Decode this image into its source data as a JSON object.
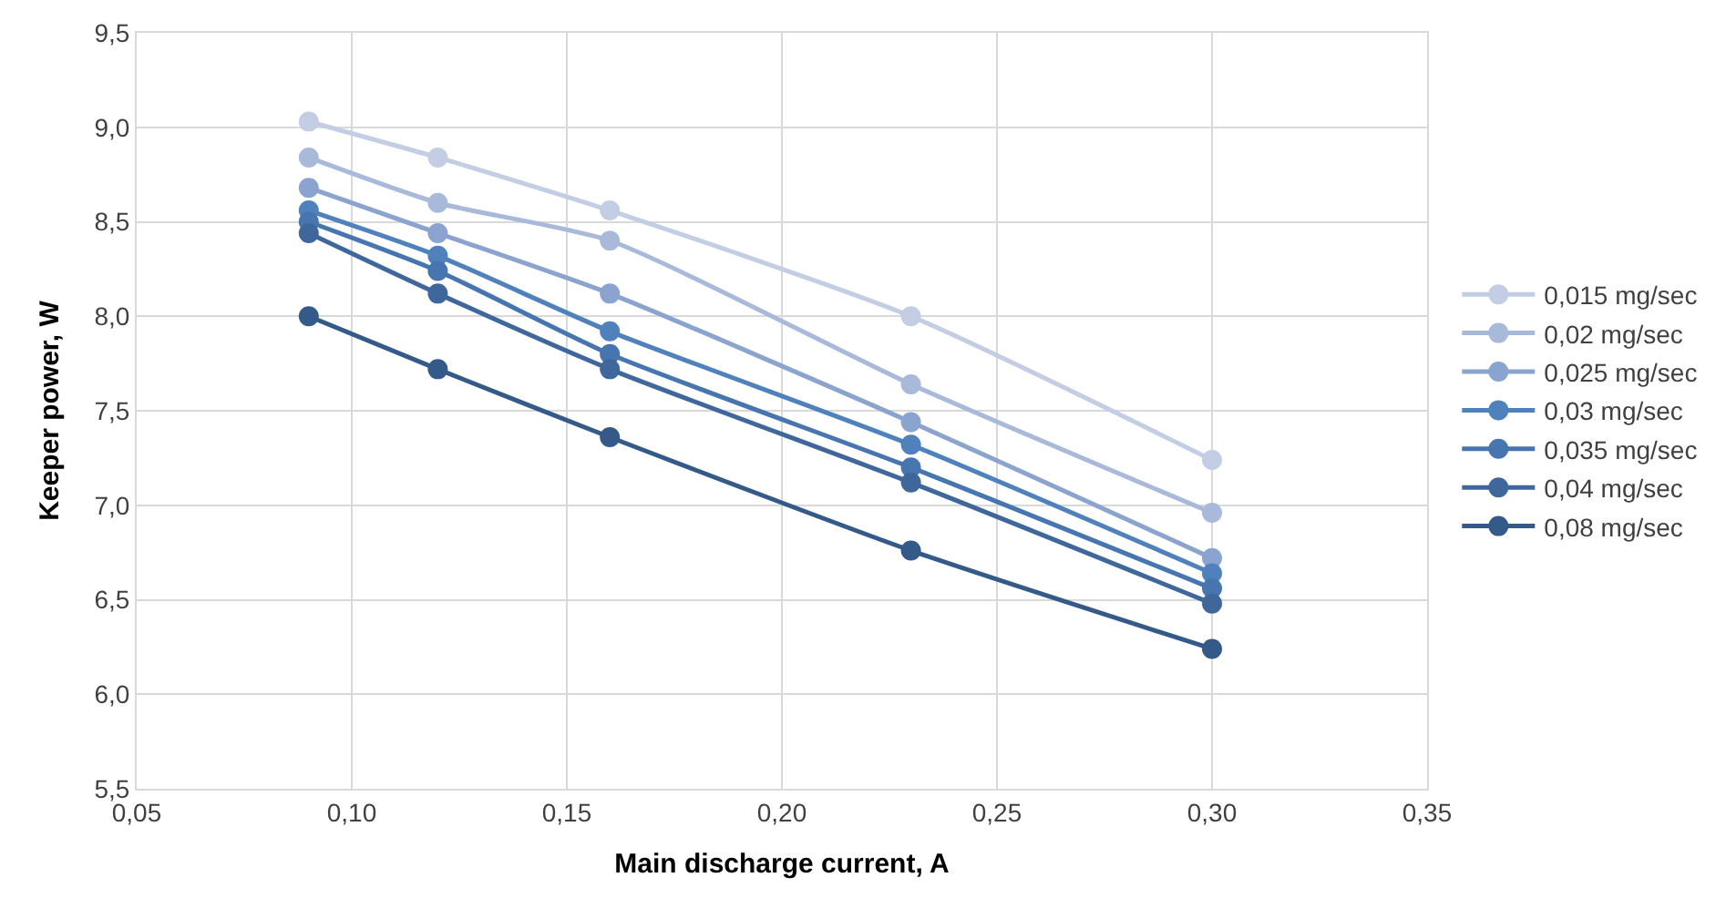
{
  "chart_data": {
    "type": "line",
    "xlabel": "Main discharge current, A",
    "ylabel": "Keeper power, W",
    "x": [
      0.09,
      0.12,
      0.16,
      0.23,
      0.3
    ],
    "series": [
      {
        "name": "0,015 mg/sec",
        "color": "#c3cde3",
        "values": [
          9.03,
          8.84,
          8.56,
          8.0,
          7.24
        ]
      },
      {
        "name": "0,02 mg/sec",
        "color": "#a9b9da",
        "values": [
          8.84,
          8.6,
          8.4,
          7.64,
          6.96
        ]
      },
      {
        "name": "0,025 mg/sec",
        "color": "#8aa3cf",
        "values": [
          8.68,
          8.44,
          8.12,
          7.44,
          6.72
        ]
      },
      {
        "name": "0,03 mg/sec",
        "color": "#4f81bd",
        "values": [
          8.56,
          8.32,
          7.92,
          7.32,
          6.64
        ]
      },
      {
        "name": "0,035 mg/sec",
        "color": "#4675b0",
        "values": [
          8.5,
          8.24,
          7.8,
          7.2,
          6.56
        ]
      },
      {
        "name": "0,04 mg/sec",
        "color": "#3f679c",
        "values": [
          8.44,
          8.12,
          7.72,
          7.12,
          6.48
        ]
      },
      {
        "name": "0,08 mg/sec",
        "color": "#345a89",
        "values": [
          8.0,
          7.72,
          7.36,
          6.76,
          6.24
        ]
      }
    ],
    "xlim": [
      0.05,
      0.35
    ],
    "xticks": [
      {
        "value": 0.05,
        "label": "0,05"
      },
      {
        "value": 0.1,
        "label": "0,10"
      },
      {
        "value": 0.15,
        "label": "0,15"
      },
      {
        "value": 0.2,
        "label": "0,20"
      },
      {
        "value": 0.25,
        "label": "0,25"
      },
      {
        "value": 0.3,
        "label": "0,30"
      },
      {
        "value": 0.35,
        "label": "0,35"
      }
    ],
    "ylim": [
      5.5,
      9.5
    ],
    "yticks": [
      {
        "value": 5.5,
        "label": "5,5"
      },
      {
        "value": 6.0,
        "label": "6,0"
      },
      {
        "value": 6.5,
        "label": "6,5"
      },
      {
        "value": 7.0,
        "label": "7,0"
      },
      {
        "value": 7.5,
        "label": "7,5"
      },
      {
        "value": 8.0,
        "label": "8,0"
      },
      {
        "value": 8.5,
        "label": "8,5"
      },
      {
        "value": 9.0,
        "label": "9,0"
      },
      {
        "value": 9.5,
        "label": "9,5"
      }
    ],
    "grid": true,
    "legend": "right",
    "marker": "circle",
    "line_style": "solid"
  }
}
